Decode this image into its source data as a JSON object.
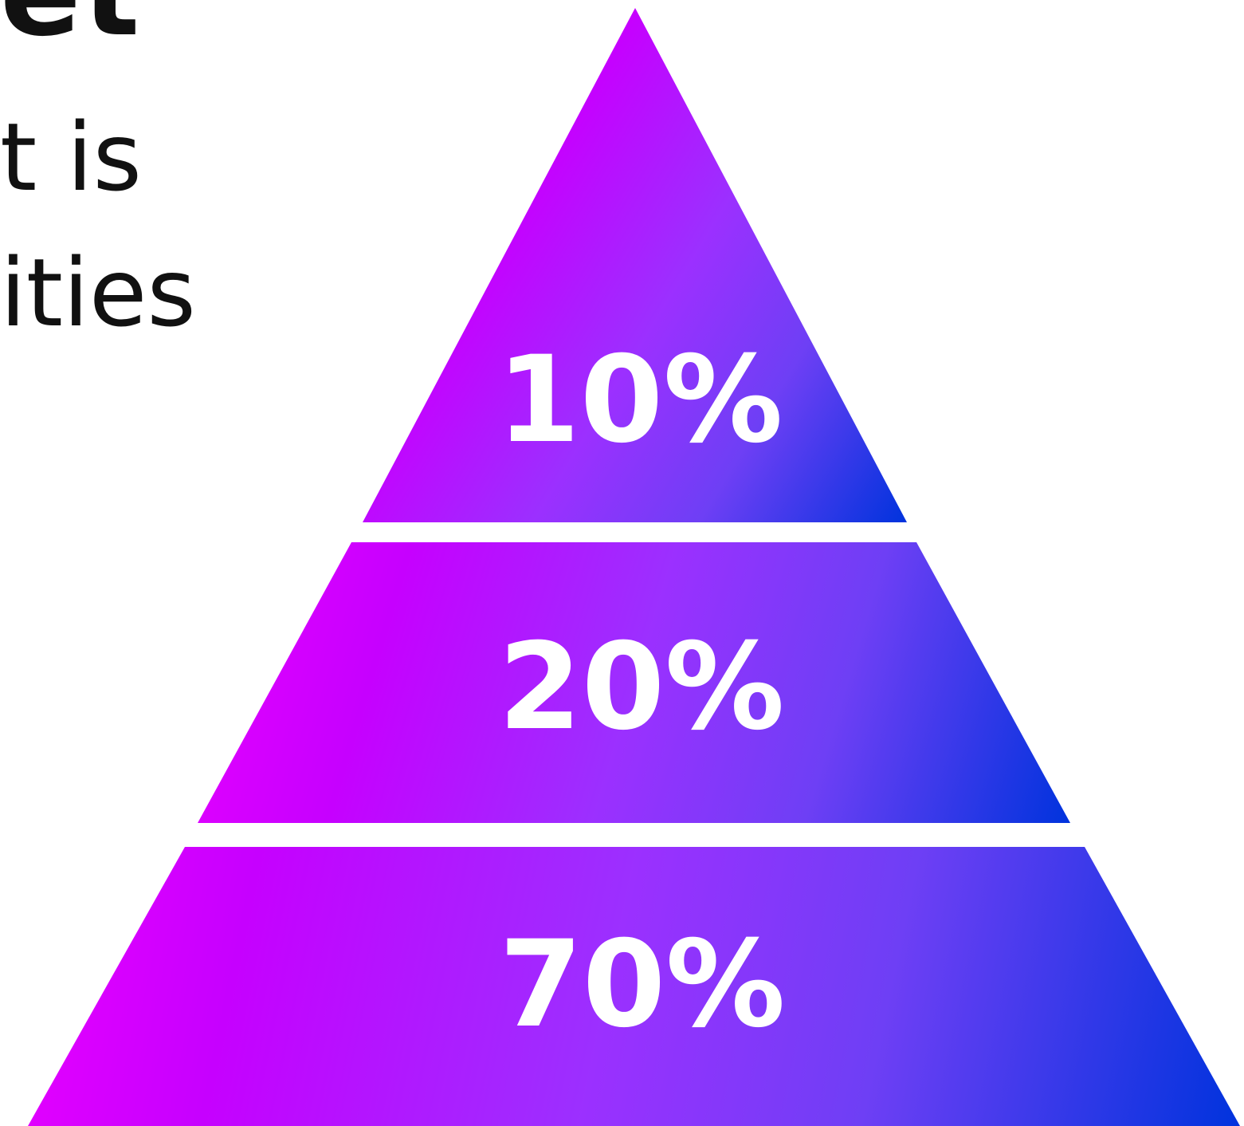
{
  "text_fragments": {
    "title": "et",
    "line1": "t is",
    "line2": "ities"
  },
  "colors": {
    "gradient_start": "#e800ff",
    "gradient_mid1": "#c600ff",
    "gradient_mid2": "#9b30ff",
    "gradient_mid3": "#6e3ff5",
    "gradient_end": "#0033dd",
    "label": "#ffffff",
    "text": "#111111"
  },
  "pyramid": {
    "tiers": [
      {
        "label": "10%",
        "value": 10
      },
      {
        "label": "20%",
        "value": 20
      },
      {
        "label": "70%",
        "value": 70
      }
    ]
  }
}
